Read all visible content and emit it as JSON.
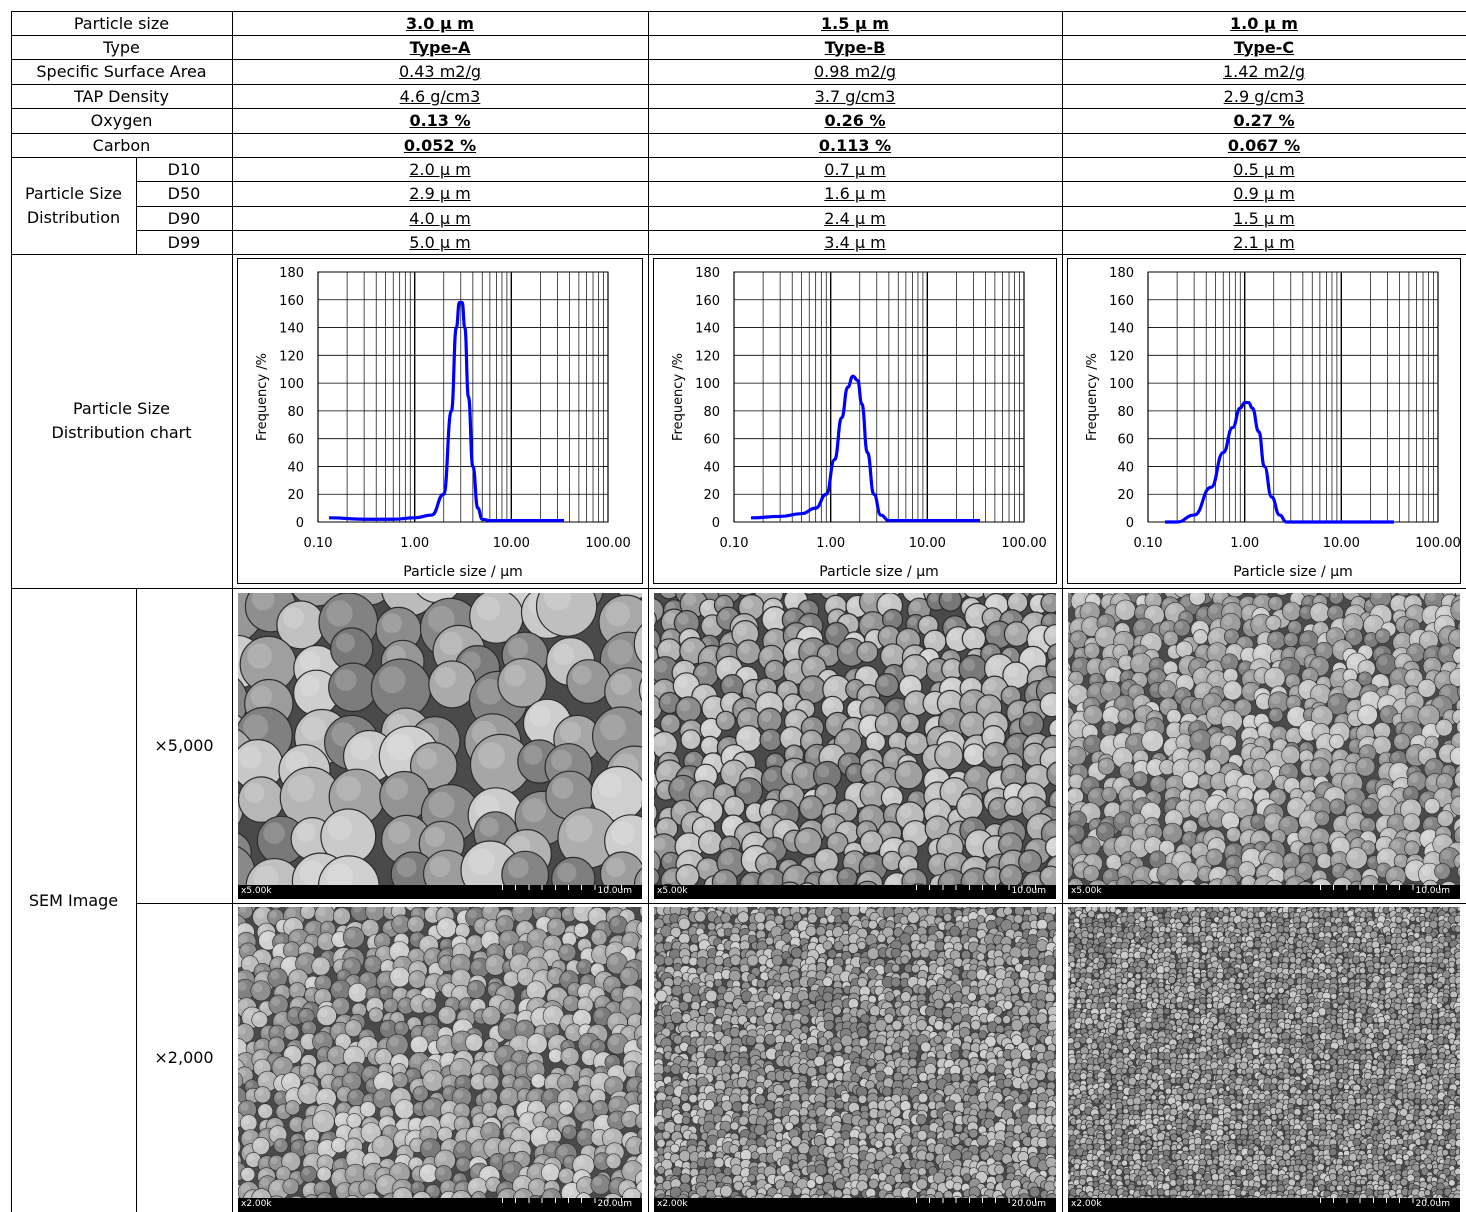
{
  "table": {
    "labels": {
      "particle_size": "Particle size",
      "type": "Type",
      "ssa": "Specific Surface Area",
      "tap": "TAP Density",
      "oxygen": "Oxygen",
      "carbon": "Carbon",
      "psd_line1": "Particle Size",
      "psd_line2": "Distribution",
      "d10": "D10",
      "d50": "D50",
      "d90": "D90",
      "d99": "D99",
      "chart_line1": "Particle Size",
      "chart_line2": "Distribution chart",
      "sem": "SEM Image",
      "mag5000": "×5,000",
      "mag2000": "×2,000"
    },
    "columns": [
      {
        "particle_size": "3.0 μ m",
        "type": "Type-A",
        "ssa": "0.43 m2/g",
        "tap": "4.6 g/cm3",
        "oxygen": "0.13 %",
        "carbon": "0.052 %",
        "d10": "2.0 μ m",
        "d50": "2.9 μ m",
        "d90": "4.0 μ m",
        "d99": "5.0 μ m",
        "sem5": {
          "mag": "x5.00k",
          "len": "10.0um"
        },
        "sem2": {
          "mag": "x2.00k",
          "len": "20.0um"
        }
      },
      {
        "particle_size": "1.5 μ m",
        "type": "Type-B",
        "ssa": "0.98 m2/g",
        "tap": "3.7 g/cm3",
        "oxygen": "0.26 %",
        "carbon": "0.113 %",
        "d10": "0.7 μ m",
        "d50": "1.6 μ m",
        "d90": "2.4 μ m",
        "d99": "3.4 μ m",
        "sem5": {
          "mag": "x5.00k",
          "len": "10.0um"
        },
        "sem2": {
          "mag": "x2.00k",
          "len": "20.0um"
        }
      },
      {
        "particle_size": "1.0 μ m",
        "type": "Type-C",
        "ssa": "1.42 m2/g",
        "tap": "2.9 g/cm3",
        "oxygen": "0.27 %",
        "carbon": "0.067 %",
        "d10": "0.5 μ m",
        "d50": "0.9 μ m",
        "d90": "1.5 μ m",
        "d99": "2.1 μ m",
        "sem5": {
          "mag": "x5.00k",
          "len": "10.0um"
        },
        "sem2": {
          "mag": "x2.00k",
          "len": "20.0um"
        }
      }
    ]
  },
  "chart_data": [
    {
      "type": "line",
      "xlabel": "Particle size / μm",
      "ylabel": "Frequency /%",
      "x_scale": "log",
      "xlim": [
        0.1,
        100
      ],
      "ylim": [
        0,
        180
      ],
      "xticks": [
        "0.10",
        "1.00",
        "10.00",
        "100.00"
      ],
      "yticks": [
        "0",
        "20",
        "40",
        "60",
        "80",
        "100",
        "120",
        "140",
        "160",
        "180"
      ],
      "grid": true,
      "color": "#0000ff",
      "series": [
        {
          "x": [
            0.13,
            0.3,
            0.6,
            1.0,
            1.5,
            2.0,
            2.4,
            2.7,
            2.9,
            3.1,
            3.3,
            3.6,
            4.0,
            4.5,
            5.0,
            6.0,
            10,
            20,
            35
          ],
          "y": [
            3,
            2,
            2,
            3,
            5,
            20,
            80,
            140,
            158,
            158,
            140,
            90,
            40,
            10,
            2,
            1,
            1,
            1,
            1
          ]
        }
      ]
    },
    {
      "type": "line",
      "xlabel": "Particle size / μm",
      "ylabel": "Frequency /%",
      "x_scale": "log",
      "xlim": [
        0.1,
        100
      ],
      "ylim": [
        0,
        180
      ],
      "xticks": [
        "0.10",
        "1.00",
        "10.00",
        "100.00"
      ],
      "yticks": [
        "0",
        "20",
        "40",
        "60",
        "80",
        "100",
        "120",
        "140",
        "160",
        "180"
      ],
      "grid": true,
      "color": "#0000ff",
      "series": [
        {
          "x": [
            0.15,
            0.3,
            0.5,
            0.7,
            0.9,
            1.1,
            1.3,
            1.5,
            1.7,
            1.9,
            2.1,
            2.4,
            2.8,
            3.3,
            4.0,
            5.0,
            10,
            20,
            35
          ],
          "y": [
            3,
            4,
            6,
            10,
            20,
            45,
            75,
            97,
            105,
            102,
            85,
            50,
            20,
            5,
            1,
            1,
            1,
            1,
            1
          ]
        }
      ]
    },
    {
      "type": "line",
      "xlabel": "Particle size / μm",
      "ylabel": "Frequency /%",
      "x_scale": "log",
      "xlim": [
        0.1,
        100
      ],
      "ylim": [
        0,
        180
      ],
      "xticks": [
        "0.10",
        "1.00",
        "10.00",
        "100.00"
      ],
      "yticks": [
        "0",
        "20",
        "40",
        "60",
        "80",
        "100",
        "120",
        "140",
        "160",
        "180"
      ],
      "grid": true,
      "color": "#0000ff",
      "series": [
        {
          "x": [
            0.15,
            0.2,
            0.3,
            0.45,
            0.6,
            0.75,
            0.9,
            1.0,
            1.1,
            1.2,
            1.4,
            1.6,
            1.9,
            2.3,
            2.7,
            3.5,
            10,
            20,
            35
          ],
          "y": [
            0,
            0,
            5,
            25,
            50,
            68,
            82,
            86,
            86,
            82,
            65,
            40,
            18,
            5,
            0,
            0,
            0,
            0,
            0
          ]
        }
      ]
    }
  ]
}
